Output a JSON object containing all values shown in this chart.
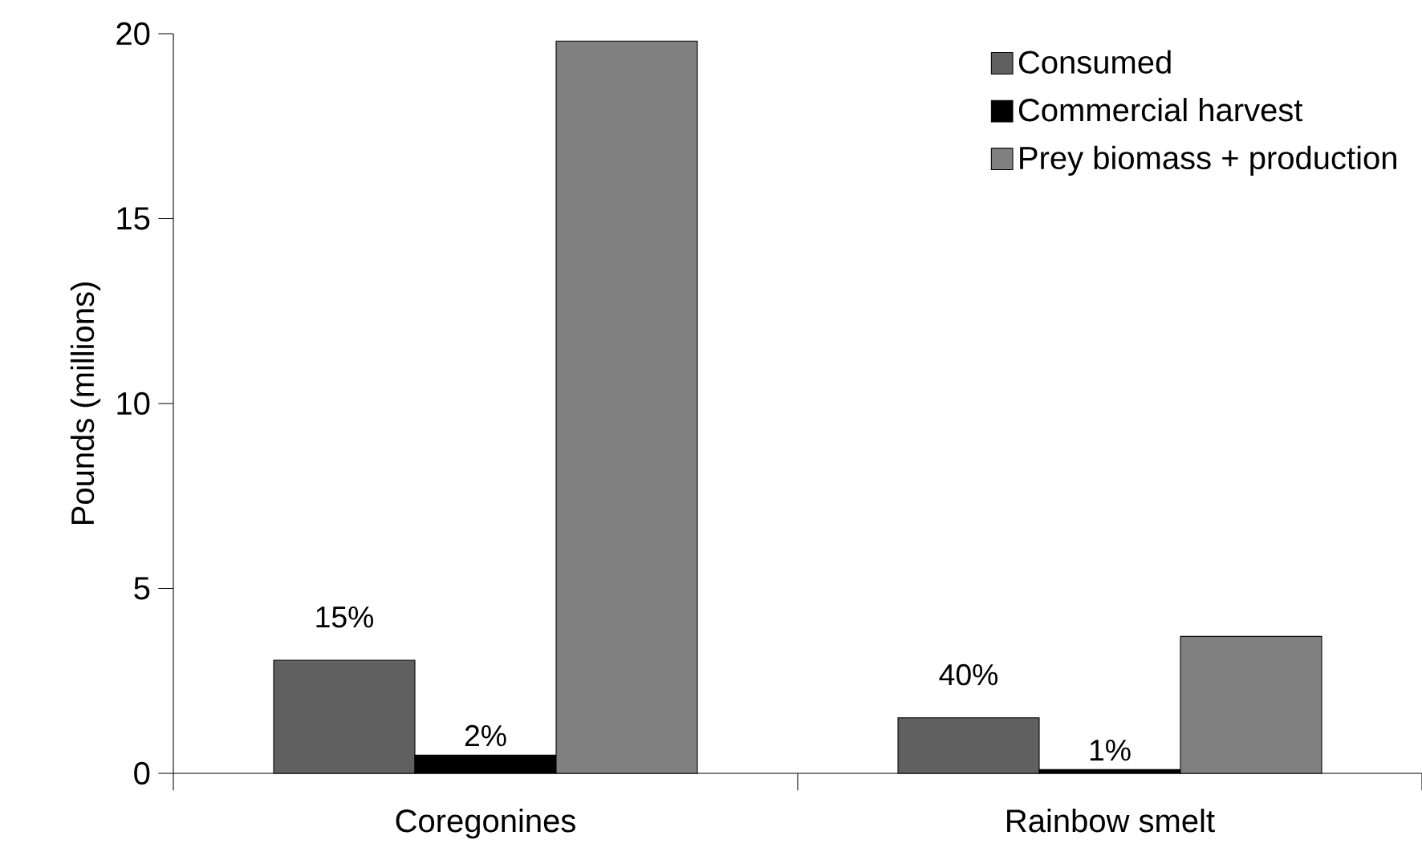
{
  "chart_data": {
    "type": "bar",
    "ylabel": "Pounds (millions)",
    "categories": [
      "Coregonines",
      "Rainbow smelt"
    ],
    "series": [
      {
        "name": "Consumed",
        "color": "#606060",
        "values": [
          3.06,
          1.5
        ]
      },
      {
        "name": "Commercial harvest",
        "color": "#000000",
        "values": [
          0.49,
          0.1
        ]
      },
      {
        "name": "Prey biomass + production",
        "color": "#808080",
        "values": [
          19.8,
          3.7
        ]
      }
    ],
    "ylim": [
      0,
      20
    ],
    "yticks": [
      0,
      5,
      10,
      15,
      20
    ],
    "grid": false,
    "legend": "top right",
    "annotations": [
      "15%",
      "2%",
      "40%",
      "1%"
    ]
  }
}
